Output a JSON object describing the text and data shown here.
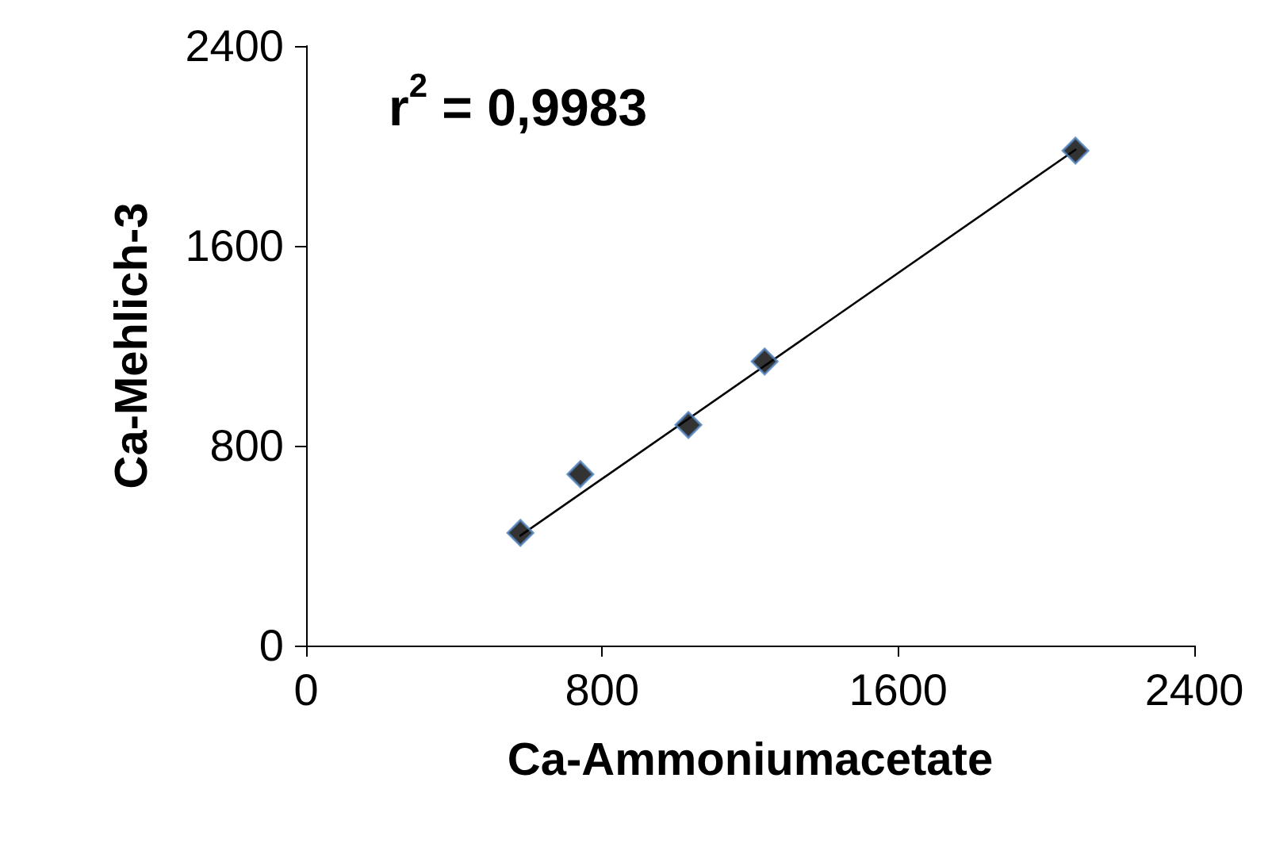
{
  "chart_data": {
    "type": "scatter",
    "xlabel": "Ca-Ammoniumacetate",
    "ylabel": "Ca-Mehlich-3",
    "xlim": [
      0,
      2400
    ],
    "xticks": [
      0,
      800,
      1600,
      2400
    ],
    "ylim": [
      0,
      2400
    ],
    "yticks": [
      0,
      800,
      1600,
      2400
    ],
    "grid": false,
    "marker": "diamond",
    "series": [
      {
        "color": "#000000",
        "x": [
          579,
          741,
          1033,
          1239,
          2079
        ],
        "values": [
          451,
          686,
          883,
          1137,
          1981
        ]
      },
      {
        "type": "line",
        "color": "#000000",
        "marker": "none",
        "line_style": "solid",
        "x": [
          579,
          2079
        ],
        "values": [
          440,
          1985
        ]
      }
    ],
    "annotations": [
      "r$^{2}$ = 0,9983"
    ]
  }
}
